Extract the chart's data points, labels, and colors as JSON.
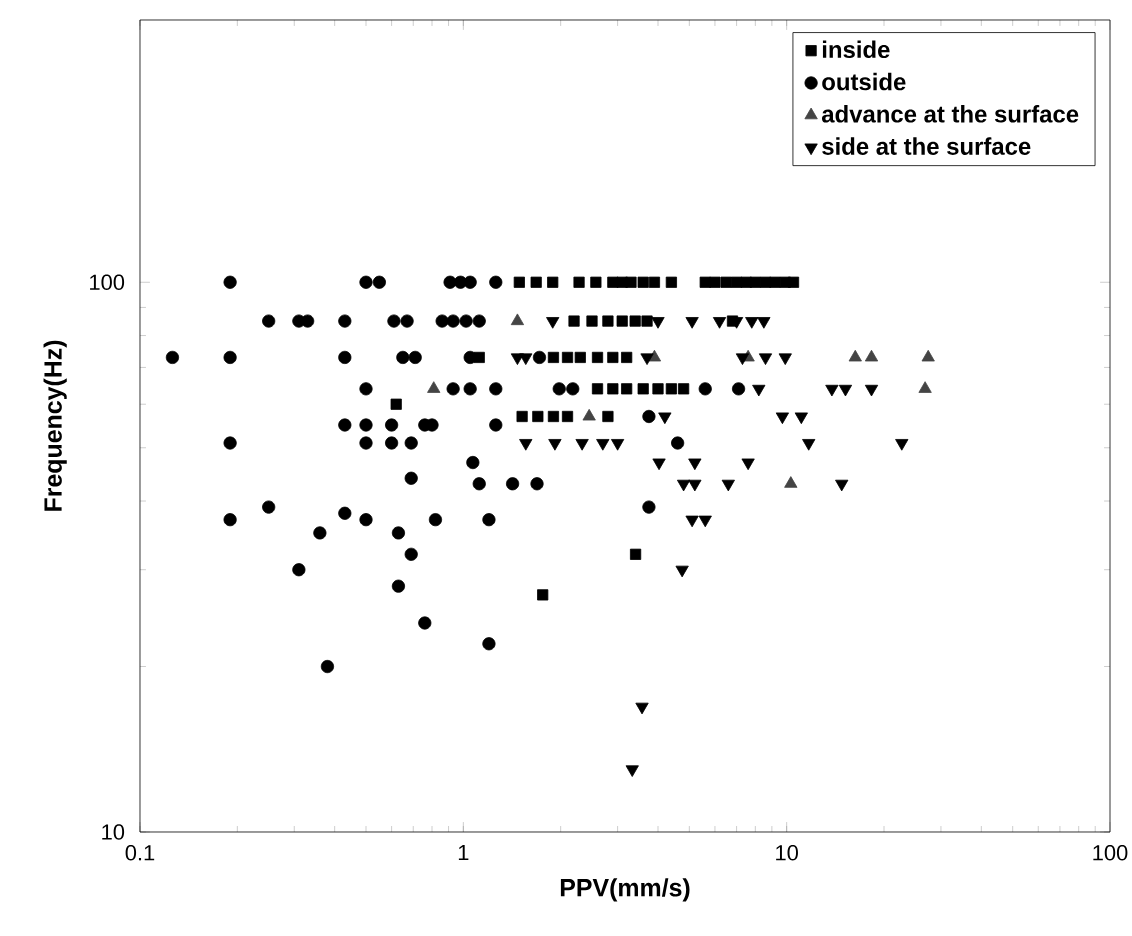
{
  "chart_data": {
    "type": "scatter",
    "xlabel": "PPV(mm/s)",
    "ylabel": "Frequency(Hz)",
    "log": "xy",
    "xlim": [
      0.1,
      100
    ],
    "ylim": [
      10,
      300
    ],
    "xticks": [
      0.1,
      1,
      10,
      100
    ],
    "yticks": [
      10,
      100
    ],
    "grid": false,
    "legend": "top right",
    "series": [
      {
        "name": "inside",
        "color": "#000000",
        "marker": "square",
        "x": [
          1.49,
          1.68,
          1.89,
          2.28,
          2.57,
          2.9,
          3.1,
          3.3,
          3.6,
          3.9,
          4.4,
          5.6,
          6.0,
          6.5,
          7.0,
          7.5,
          8.0,
          8.6,
          9.2,
          9.9,
          10.5,
          2.2,
          2.5,
          2.8,
          3.1,
          3.4,
          3.7,
          6.8,
          1.12,
          1.9,
          2.1,
          2.3,
          2.6,
          2.9,
          3.2,
          2.6,
          2.9,
          3.2,
          3.6,
          4.0,
          4.4,
          4.8,
          0.62,
          1.52,
          1.7,
          1.9,
          2.1,
          2.8,
          3.41,
          1.76
        ],
        "values": [
          100,
          100,
          100,
          100,
          100,
          100,
          100,
          100,
          100,
          100,
          100,
          100,
          100,
          100,
          100,
          100,
          100,
          100,
          100,
          100,
          100,
          85,
          85,
          85,
          85,
          85,
          85,
          85,
          73,
          73,
          73,
          73,
          73,
          73,
          73,
          64,
          64,
          64,
          64,
          64,
          64,
          64,
          60,
          57,
          57,
          57,
          57,
          57,
          32,
          27
        ]
      },
      {
        "name": "outside",
        "color": "#000000",
        "marker": "circle",
        "x": [
          0.19,
          0.5,
          0.55,
          0.91,
          0.98,
          1.05,
          1.26,
          0.25,
          0.31,
          0.33,
          0.43,
          0.61,
          0.67,
          0.86,
          0.93,
          1.02,
          1.12,
          0.126,
          0.19,
          0.43,
          0.65,
          0.71,
          1.05,
          1.72,
          0.5,
          0.93,
          1.05,
          1.26,
          1.98,
          2.18,
          5.6,
          7.1,
          0.43,
          0.5,
          0.6,
          0.76,
          0.8,
          1.26,
          3.75,
          0.19,
          0.5,
          0.6,
          0.69,
          4.6,
          0.69,
          1.07,
          1.12,
          1.42,
          1.69,
          3.75,
          0.19,
          0.25,
          0.36,
          0.43,
          0.5,
          0.63,
          0.82,
          1.2,
          0.69,
          0.31,
          0.38,
          0.63,
          0.76,
          1.2
        ],
        "values": [
          100,
          100,
          100,
          100,
          100,
          100,
          100,
          85,
          85,
          85,
          85,
          85,
          85,
          85,
          85,
          85,
          85,
          73,
          73,
          73,
          73,
          73,
          73,
          73,
          64,
          64,
          64,
          64,
          64,
          64,
          64,
          64,
          55,
          55,
          55,
          55,
          55,
          55,
          57,
          51,
          51,
          51,
          51,
          51,
          44,
          47,
          43,
          43,
          43,
          39,
          37,
          39,
          35,
          38,
          37,
          35,
          37,
          37,
          32,
          30,
          20,
          28,
          24,
          22
        ]
      },
      {
        "name": "advance at the surface",
        "color": "#444444",
        "marker": "triangle",
        "x": [
          1.47,
          3.9,
          7.6,
          16.3,
          18.3,
          27.4,
          0.81,
          26.8,
          2.45,
          10.3
        ],
        "values": [
          85,
          73,
          73,
          73,
          73,
          73,
          64,
          64,
          57,
          43
        ]
      },
      {
        "name": "side at the surface",
        "color": "#000000",
        "marker": "triangle-down",
        "x": [
          1.89,
          4.0,
          5.1,
          6.2,
          7.0,
          7.8,
          8.5,
          1.47,
          1.56,
          3.7,
          7.3,
          8.6,
          9.9,
          8.2,
          13.8,
          15.2,
          18.3,
          4.2,
          9.7,
          11.1,
          1.56,
          1.92,
          2.33,
          2.7,
          3.0,
          11.7,
          22.7,
          4.03,
          5.2,
          7.6,
          4.8,
          5.2,
          6.6,
          14.8,
          5.1,
          5.6,
          4.75,
          3.57,
          3.33
        ],
        "values": [
          85,
          85,
          85,
          85,
          85,
          85,
          85,
          73,
          73,
          73,
          73,
          73,
          73,
          64,
          64,
          64,
          64,
          57,
          57,
          57,
          51,
          51,
          51,
          51,
          51,
          51,
          51,
          47,
          47,
          47,
          43,
          43,
          43,
          43,
          37,
          37,
          30,
          16.9,
          13
        ]
      }
    ]
  }
}
